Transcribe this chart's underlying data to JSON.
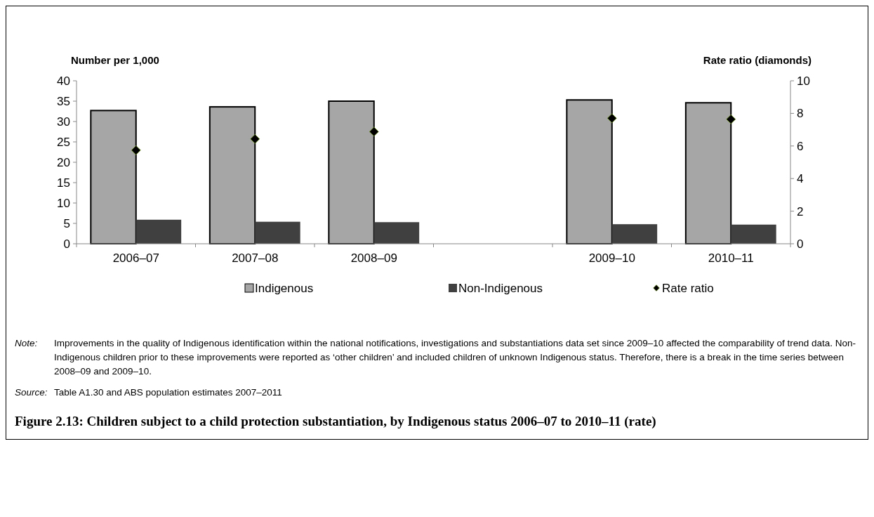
{
  "chart_data": {
    "type": "bar",
    "title": "Figure 2.13: Children subject to a child protection substantiation, by Indigenous status 2006–07 to 2010–11 (rate)",
    "ylabel": "Number per 1,000",
    "y2label": "Rate ratio (diamonds)",
    "categories": [
      "2006–07",
      "2007–08",
      "2008–09",
      null,
      "2009–10",
      "2010–11"
    ],
    "series": [
      {
        "name": "Indigenous",
        "color": "#a6a6a6",
        "values": [
          32.7,
          33.6,
          35.0,
          null,
          35.3,
          34.6
        ]
      },
      {
        "name": "Non-Indigenous",
        "color": "#404040",
        "values": [
          5.9,
          5.4,
          5.3,
          null,
          4.8,
          4.7
        ]
      },
      {
        "name": "Rate ratio",
        "type": "scatter",
        "axis": "y2",
        "marker": "diamond",
        "color": "#000000",
        "values": [
          5.74,
          6.43,
          6.88,
          null,
          7.7,
          7.64
        ]
      }
    ],
    "ylim": [
      0,
      40
    ],
    "yticks": [
      0,
      5,
      10,
      15,
      20,
      25,
      30,
      35,
      40
    ],
    "y2lim": [
      0,
      10
    ],
    "y2ticks": [
      0,
      2,
      4,
      6,
      8,
      10
    ],
    "legend": "bottom",
    "grid": false,
    "annotations": [
      "Note: Improvements in the quality of Indigenous identification within the national notifications, investigations and substantiations data set since 2009–10 affected the comparability of trend data. Non-Indigenous children prior to these improvements were reported as ‘other children’ and included children of unknown Indigenous status. Therefore, there is a break in the time series between 2008–09 and 2009–10.",
      "Source: Table A1.30 and ABS population estimates 2007–2011"
    ]
  }
}
